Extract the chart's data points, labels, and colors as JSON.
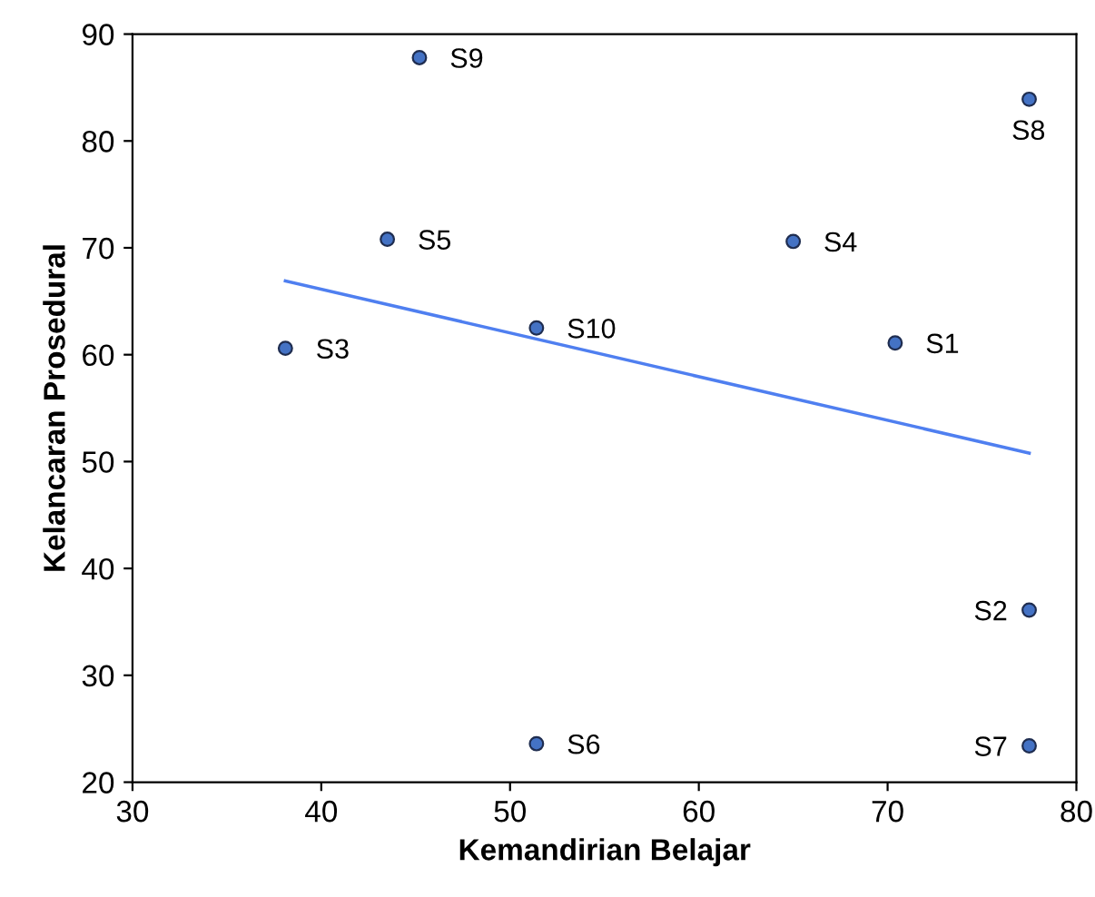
{
  "chart_data": {
    "type": "scatter",
    "xlabel": "Kemandirian Belajar",
    "ylabel": "Kelancaran Prosedural",
    "xlim": [
      30,
      80
    ],
    "ylim": [
      20,
      90
    ],
    "xticks": [
      30,
      40,
      50,
      60,
      70,
      80
    ],
    "yticks": [
      20,
      30,
      40,
      50,
      60,
      70,
      80,
      90
    ],
    "grid": false,
    "series": [
      {
        "marker": "circle",
        "color": "#4472c4",
        "x": [
          70.4,
          77.5,
          38.1,
          65.0,
          43.5,
          51.4,
          77.5,
          77.5,
          45.2,
          51.4
        ],
        "values": [
          61.1,
          36.1,
          60.6,
          70.6,
          70.8,
          23.6,
          23.4,
          83.9,
          87.8,
          62.5
        ]
      },
      {
        "type": "line",
        "color": "#4f7ff0",
        "x": [
          38.1,
          77.5
        ],
        "values": [
          66.9,
          50.8
        ]
      }
    ],
    "annotations": [
      {
        "text": "S1",
        "x": 70.4,
        "y": 61.1
      },
      {
        "text": "S2",
        "x": 77.5,
        "y": 36.1
      },
      {
        "text": "S3",
        "x": 38.1,
        "y": 60.6
      },
      {
        "text": "S4",
        "x": 65.0,
        "y": 70.6
      },
      {
        "text": "S5",
        "x": 43.5,
        "y": 70.8
      },
      {
        "text": "S6",
        "x": 51.4,
        "y": 23.6
      },
      {
        "text": "S7",
        "x": 77.5,
        "y": 23.4
      },
      {
        "text": "S8",
        "x": 77.5,
        "y": 83.9
      },
      {
        "text": "S9",
        "x": 45.2,
        "y": 87.8
      },
      {
        "text": "S10",
        "x": 51.4,
        "y": 62.5
      }
    ]
  }
}
